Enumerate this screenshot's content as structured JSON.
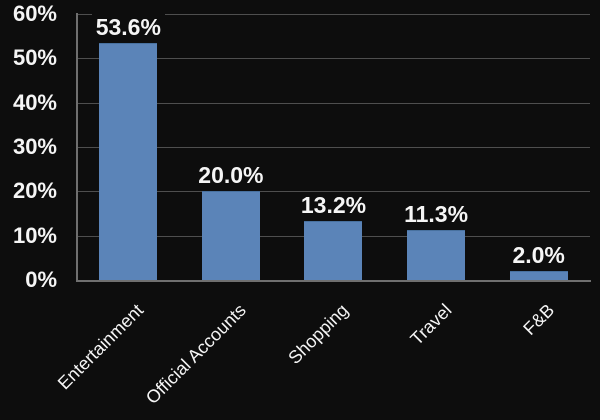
{
  "chart_data": {
    "type": "bar",
    "title": "",
    "xlabel": "",
    "ylabel": "",
    "categories": [
      "Entertainment",
      "Official Accounts",
      "Shopping",
      "Travel",
      "F&B"
    ],
    "values": [
      53.6,
      20.0,
      13.2,
      11.3,
      2.0
    ],
    "data_labels": [
      "53.6%",
      "20.0%",
      "13.2%",
      "11.3%",
      "2.0%"
    ],
    "ylim": [
      0,
      60
    ],
    "yticks": [
      0,
      10,
      20,
      30,
      40,
      50,
      60
    ],
    "ytick_labels": [
      "0%",
      "10%",
      "20%",
      "30%",
      "40%",
      "50%",
      "60%"
    ],
    "grid": true,
    "legend": false,
    "x_label_rotation_deg": 45,
    "colors": {
      "background": "#0d0d0d",
      "bar": "#5b84b8",
      "bar_border": "#48719f",
      "gridline": "#4e4e4e",
      "axis": "#6f6f6f",
      "text": "#f5f5f5"
    }
  }
}
